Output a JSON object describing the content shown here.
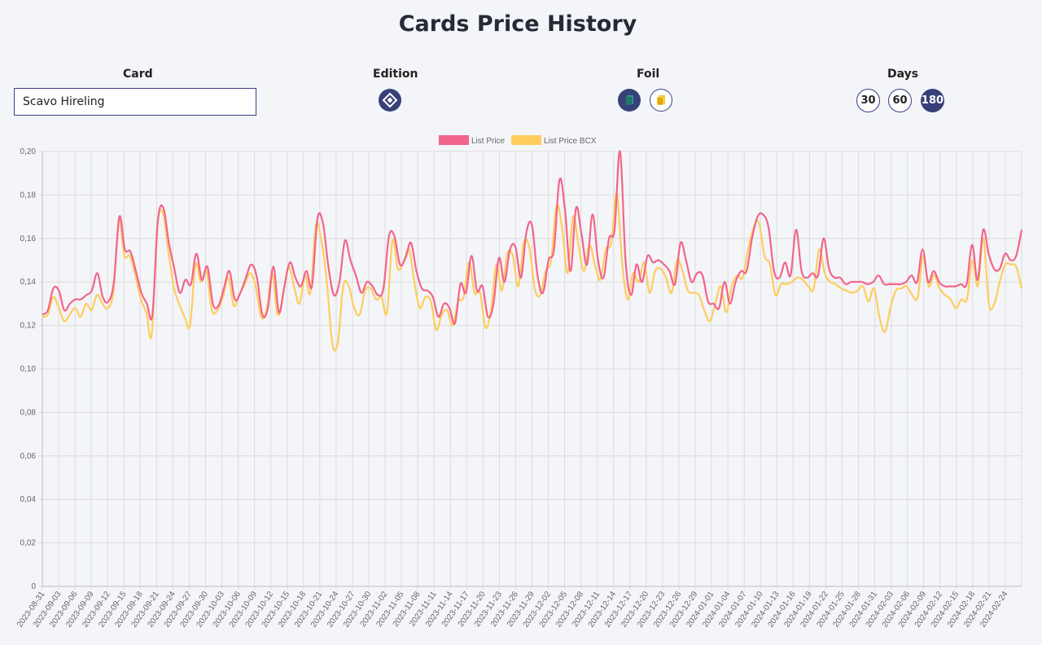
{
  "page": {
    "title": "Cards Price History"
  },
  "controls": {
    "card_label": "Card",
    "card_value": "Scavo Hireling",
    "edition_label": "Edition",
    "foil_label": "Foil",
    "days_label": "Days",
    "days_options": [
      "30",
      "60",
      "180"
    ],
    "days_selected": "180"
  },
  "colors": {
    "list_price": "#f2658a",
    "list_price_bcx": "#ffcd5e",
    "accent": "#38407a"
  },
  "icons": {
    "edition": "edition-diamond-icon",
    "foil_regular": "regular-card-icon",
    "foil_gold": "gold-card-icon"
  },
  "chart_data": {
    "type": "line",
    "legend_position": "top-center",
    "grid": true,
    "ylim": [
      0,
      0.2
    ],
    "y_ticks": [
      "0",
      "0,02",
      "0,04",
      "0,06",
      "0,08",
      "0,10",
      "0,12",
      "0,14",
      "0,16",
      "0,18",
      "0,20"
    ],
    "x_ticks": [
      "2023-08-31",
      "2023-09-03",
      "2023-09-06",
      "2023-09-09",
      "2023-09-12",
      "2023-09-15",
      "2023-09-18",
      "2023-09-21",
      "2023-09-24",
      "2023-09-27",
      "2023-09-30",
      "2023-10-03",
      "2023-10-06",
      "2023-10-09",
      "2023-10-12",
      "2023-10-15",
      "2023-10-18",
      "2023-10-21",
      "2023-10-24",
      "2023-10-27",
      "2023-10-30",
      "2023-11-02",
      "2023-11-05",
      "2023-11-08",
      "2023-11-11",
      "2023-11-14",
      "2023-11-17",
      "2023-11-20",
      "2023-11-23",
      "2023-11-26",
      "2023-11-29",
      "2023-12-02",
      "2023-12-05",
      "2023-12-08",
      "2023-12-11",
      "2023-12-14",
      "2023-12-17",
      "2023-12-20",
      "2023-12-23",
      "2023-12-26",
      "2023-12-29",
      "2024-01-01",
      "2024-01-04",
      "2024-01-07",
      "2024-01-10",
      "2024-01-13",
      "2024-01-16",
      "2024-01-19",
      "2024-01-22",
      "2024-01-25",
      "2024-01-28",
      "2024-01-31",
      "2024-02-03",
      "2024-02-06",
      "2024-02-09",
      "2024-02-12",
      "2024-02-15",
      "2024-02-18",
      "2024-02-21",
      "2024-02-24"
    ],
    "series": [
      {
        "name": "List Price",
        "values": [
          0.125,
          0.127,
          0.137,
          0.136,
          0.127,
          0.13,
          0.132,
          0.132,
          0.134,
          0.136,
          0.144,
          0.133,
          0.131,
          0.14,
          0.17,
          0.155,
          0.154,
          0.145,
          0.135,
          0.13,
          0.125,
          0.168,
          0.174,
          0.158,
          0.146,
          0.135,
          0.141,
          0.139,
          0.153,
          0.141,
          0.147,
          0.13,
          0.129,
          0.137,
          0.145,
          0.132,
          0.135,
          0.142,
          0.148,
          0.142,
          0.125,
          0.128,
          0.147,
          0.126,
          0.138,
          0.149,
          0.142,
          0.138,
          0.145,
          0.138,
          0.169,
          0.167,
          0.147,
          0.134,
          0.14,
          0.159,
          0.15,
          0.143,
          0.135,
          0.14,
          0.138,
          0.134,
          0.137,
          0.161,
          0.161,
          0.148,
          0.151,
          0.158,
          0.145,
          0.137,
          0.136,
          0.133,
          0.124,
          0.13,
          0.128,
          0.121,
          0.139,
          0.135,
          0.152,
          0.136,
          0.138,
          0.124,
          0.13,
          0.151,
          0.14,
          0.155,
          0.156,
          0.142,
          0.163,
          0.166,
          0.143,
          0.135,
          0.15,
          0.155,
          0.187,
          0.173,
          0.145,
          0.174,
          0.162,
          0.148,
          0.171,
          0.15,
          0.142,
          0.16,
          0.164,
          0.2,
          0.15,
          0.134,
          0.148,
          0.14,
          0.152,
          0.149,
          0.15,
          0.148,
          0.145,
          0.139,
          0.158,
          0.15,
          0.14,
          0.144,
          0.143,
          0.131,
          0.13,
          0.128,
          0.14,
          0.13,
          0.14,
          0.145,
          0.145,
          0.16,
          0.17,
          0.171,
          0.165,
          0.145,
          0.142,
          0.149,
          0.143,
          0.164,
          0.145,
          0.142,
          0.144,
          0.143,
          0.16,
          0.146,
          0.142,
          0.142,
          0.139,
          0.14,
          0.14,
          0.14,
          0.139,
          0.14,
          0.143,
          0.139,
          0.139,
          0.139,
          0.139,
          0.14,
          0.143,
          0.14,
          0.155,
          0.14,
          0.145,
          0.14,
          0.138,
          0.138,
          0.138,
          0.139,
          0.139,
          0.157,
          0.141,
          0.164,
          0.153,
          0.146,
          0.146,
          0.153,
          0.15,
          0.152,
          0.164
        ]
      },
      {
        "name": "List Price BCX",
        "values": [
          0.124,
          0.125,
          0.133,
          0.128,
          0.122,
          0.125,
          0.128,
          0.124,
          0.13,
          0.127,
          0.134,
          0.13,
          0.128,
          0.136,
          0.168,
          0.152,
          0.152,
          0.143,
          0.132,
          0.126,
          0.116,
          0.165,
          0.172,
          0.155,
          0.138,
          0.13,
          0.124,
          0.12,
          0.148,
          0.14,
          0.145,
          0.127,
          0.127,
          0.133,
          0.142,
          0.129,
          0.134,
          0.139,
          0.144,
          0.138,
          0.124,
          0.127,
          0.144,
          0.125,
          0.134,
          0.147,
          0.138,
          0.13,
          0.143,
          0.135,
          0.166,
          0.159,
          0.14,
          0.112,
          0.112,
          0.138,
          0.138,
          0.128,
          0.125,
          0.136,
          0.137,
          0.132,
          0.133,
          0.126,
          0.159,
          0.146,
          0.149,
          0.155,
          0.14,
          0.128,
          0.133,
          0.131,
          0.118,
          0.125,
          0.127,
          0.12,
          0.131,
          0.133,
          0.149,
          0.135,
          0.135,
          0.119,
          0.127,
          0.148,
          0.136,
          0.153,
          0.152,
          0.138,
          0.158,
          0.156,
          0.137,
          0.134,
          0.145,
          0.15,
          0.175,
          0.165,
          0.144,
          0.17,
          0.157,
          0.145,
          0.157,
          0.148,
          0.141,
          0.155,
          0.158,
          0.181,
          0.148,
          0.132,
          0.144,
          0.14,
          0.149,
          0.135,
          0.145,
          0.146,
          0.142,
          0.135,
          0.15,
          0.145,
          0.136,
          0.135,
          0.134,
          0.127,
          0.122,
          0.13,
          0.138,
          0.126,
          0.138,
          0.143,
          0.142,
          0.155,
          0.165,
          0.167,
          0.152,
          0.148,
          0.134,
          0.139,
          0.139,
          0.14,
          0.142,
          0.141,
          0.138,
          0.137,
          0.155,
          0.144,
          0.14,
          0.139,
          0.137,
          0.136,
          0.135,
          0.136,
          0.138,
          0.131,
          0.137,
          0.124,
          0.117,
          0.128,
          0.136,
          0.137,
          0.138,
          0.134,
          0.133,
          0.152,
          0.138,
          0.143,
          0.137,
          0.134,
          0.132,
          0.128,
          0.132,
          0.132,
          0.15,
          0.138,
          0.16,
          0.13,
          0.13,
          0.14,
          0.148,
          0.148,
          0.147,
          0.137
        ]
      }
    ]
  }
}
